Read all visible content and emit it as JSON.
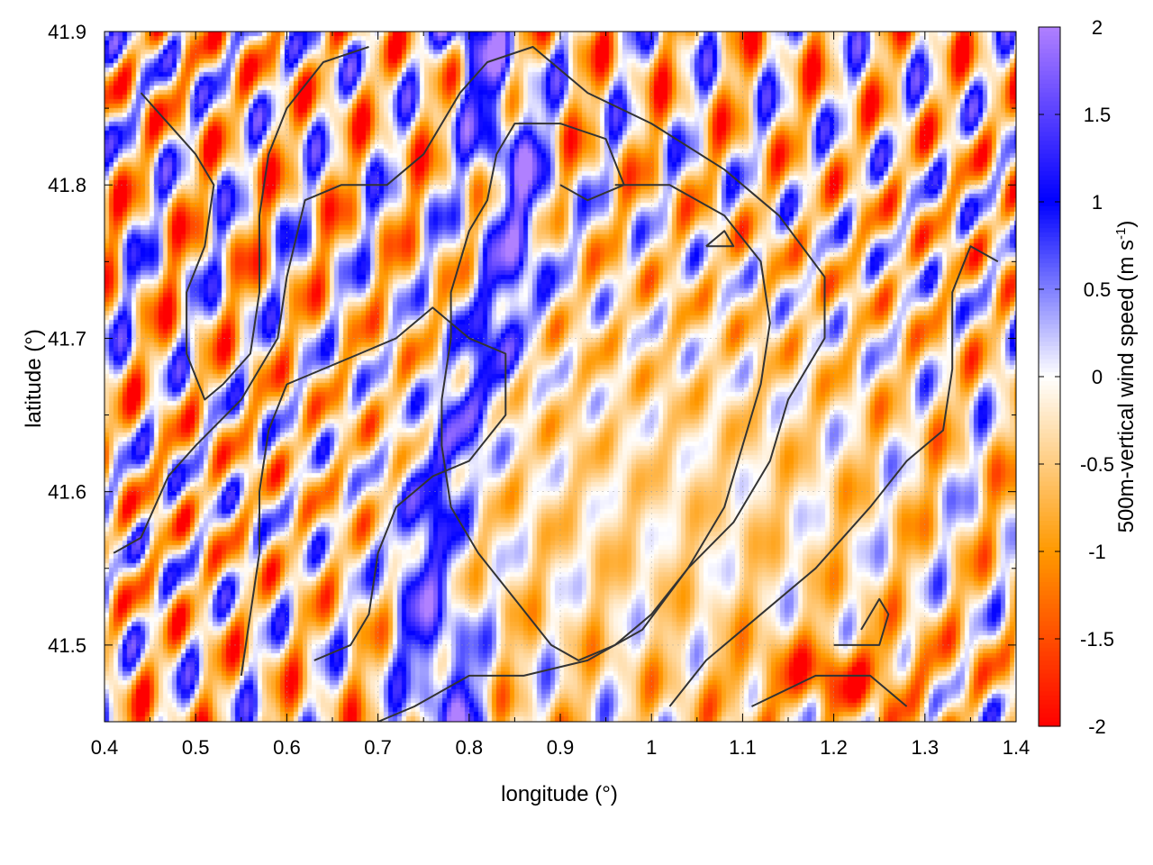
{
  "chart_data": {
    "type": "heatmap",
    "title": "",
    "xlabel": "longitude (°)",
    "ylabel": "latitude (°)",
    "xlim": [
      0.4,
      1.4
    ],
    "ylim": [
      41.45,
      41.9
    ],
    "x_ticks": [
      0.4,
      0.5,
      0.6,
      0.7,
      0.8,
      0.9,
      1.0,
      1.1,
      1.2,
      1.3,
      1.4
    ],
    "x_tick_labels": [
      "0.4",
      "0.5",
      "0.6",
      "0.7",
      "0.8",
      "0.9",
      "1",
      "1.1",
      "1.2",
      "1.3",
      "1.4"
    ],
    "y_ticks": [
      41.5,
      41.6,
      41.7,
      41.8,
      41.9
    ],
    "y_tick_labels": [
      "41.5",
      "41.6",
      "41.7",
      "41.8",
      "41.9"
    ],
    "grid": true,
    "colorbar": {
      "label": "500m-vertical wind speed (m s",
      "label_sup": "-1",
      "label_close": ")",
      "range": [
        -2,
        2
      ],
      "ticks": [
        2,
        1.5,
        1,
        0.5,
        0,
        -0.5,
        -1,
        -1.5,
        -2
      ],
      "tick_labels": [
        "2",
        "1.5",
        "1",
        "0.5",
        "0",
        "-0.5",
        "-1",
        "-1.5",
        "-2"
      ],
      "colors": {
        "-2": "#ff0000",
        "-1": "#ff9900",
        "0": "#ffffff",
        "1": "#0000ff",
        "2": "#b080ff"
      }
    },
    "contour_color": "#333333",
    "contours": [
      [
        [
          0.41,
          41.56
        ],
        [
          0.44,
          41.57
        ],
        [
          0.47,
          41.61
        ],
        [
          0.5,
          41.63
        ],
        [
          0.55,
          41.66
        ],
        [
          0.59,
          41.7
        ],
        [
          0.6,
          41.74
        ],
        [
          0.62,
          41.79
        ],
        [
          0.66,
          41.8
        ],
        [
          0.71,
          41.8
        ],
        [
          0.75,
          41.82
        ],
        [
          0.79,
          41.86
        ],
        [
          0.82,
          41.88
        ],
        [
          0.87,
          41.89
        ],
        [
          0.93,
          41.86
        ],
        [
          1.0,
          41.84
        ],
        [
          1.08,
          41.81
        ],
        [
          1.14,
          41.78
        ],
        [
          1.19,
          41.74
        ],
        [
          1.19,
          41.7
        ],
        [
          1.15,
          41.66
        ],
        [
          1.13,
          41.62
        ],
        [
          1.09,
          41.58
        ],
        [
          1.04,
          41.55
        ],
        [
          0.99,
          41.51
        ],
        [
          0.93,
          41.49
        ],
        [
          0.86,
          41.48
        ],
        [
          0.8,
          41.48
        ],
        [
          0.74,
          41.46
        ],
        [
          0.7,
          41.45
        ]
      ],
      [
        [
          0.63,
          41.49
        ],
        [
          0.67,
          41.5
        ],
        [
          0.69,
          41.52
        ],
        [
          0.7,
          41.56
        ],
        [
          0.72,
          41.59
        ],
        [
          0.76,
          41.61
        ],
        [
          0.8,
          41.62
        ],
        [
          0.84,
          41.65
        ],
        [
          0.84,
          41.69
        ],
        [
          0.8,
          41.7
        ],
        [
          0.76,
          41.72
        ],
        [
          0.72,
          41.7
        ],
        [
          0.68,
          41.69
        ],
        [
          0.64,
          41.68
        ],
        [
          0.6,
          41.67
        ],
        [
          0.58,
          41.64
        ],
        [
          0.57,
          41.6
        ],
        [
          0.57,
          41.56
        ],
        [
          0.56,
          41.52
        ],
        [
          0.55,
          41.48
        ]
      ],
      [
        [
          0.44,
          41.86
        ],
        [
          0.47,
          41.84
        ],
        [
          0.5,
          41.82
        ],
        [
          0.52,
          41.8
        ],
        [
          0.51,
          41.76
        ],
        [
          0.49,
          41.73
        ],
        [
          0.49,
          41.69
        ],
        [
          0.51,
          41.66
        ],
        [
          0.53,
          41.67
        ],
        [
          0.56,
          41.69
        ],
        [
          0.57,
          41.73
        ],
        [
          0.57,
          41.78
        ],
        [
          0.58,
          41.82
        ],
        [
          0.6,
          41.85
        ],
        [
          0.64,
          41.88
        ],
        [
          0.69,
          41.89
        ]
      ],
      [
        [
          0.9,
          41.8
        ],
        [
          0.93,
          41.79
        ],
        [
          0.97,
          41.8
        ],
        [
          0.95,
          41.83
        ],
        [
          0.9,
          41.84
        ],
        [
          0.85,
          41.84
        ],
        [
          0.83,
          41.82
        ],
        [
          0.82,
          41.79
        ],
        [
          0.8,
          41.77
        ],
        [
          0.78,
          41.73
        ],
        [
          0.78,
          41.7
        ],
        [
          0.77,
          41.66
        ],
        [
          0.77,
          41.63
        ],
        [
          0.78,
          41.59
        ],
        [
          0.81,
          41.56
        ],
        [
          0.85,
          41.53
        ],
        [
          0.89,
          41.5
        ],
        [
          0.92,
          41.49
        ],
        [
          0.96,
          41.5
        ],
        [
          1.0,
          41.52
        ],
        [
          1.04,
          41.55
        ],
        [
          1.08,
          41.59
        ],
        [
          1.1,
          41.63
        ],
        [
          1.12,
          41.67
        ],
        [
          1.13,
          41.71
        ],
        [
          1.12,
          41.75
        ],
        [
          1.08,
          41.78
        ],
        [
          1.02,
          41.8
        ],
        [
          0.96,
          41.8
        ]
      ],
      [
        [
          1.06,
          41.76
        ],
        [
          1.08,
          41.77
        ],
        [
          1.09,
          41.76
        ],
        [
          1.06,
          41.76
        ]
      ],
      [
        [
          1.23,
          41.51
        ],
        [
          1.25,
          41.53
        ],
        [
          1.26,
          41.52
        ],
        [
          1.25,
          41.5
        ],
        [
          1.2,
          41.5
        ]
      ],
      [
        [
          1.11,
          41.46
        ],
        [
          1.18,
          41.48
        ],
        [
          1.24,
          41.48
        ],
        [
          1.28,
          41.46
        ]
      ],
      [
        [
          1.38,
          41.75
        ],
        [
          1.35,
          41.76
        ],
        [
          1.33,
          41.73
        ],
        [
          1.33,
          41.68
        ],
        [
          1.32,
          41.64
        ],
        [
          1.28,
          41.62
        ],
        [
          1.24,
          41.59
        ],
        [
          1.18,
          41.55
        ],
        [
          1.12,
          41.52
        ],
        [
          1.06,
          41.49
        ],
        [
          1.02,
          41.46
        ]
      ]
    ]
  }
}
